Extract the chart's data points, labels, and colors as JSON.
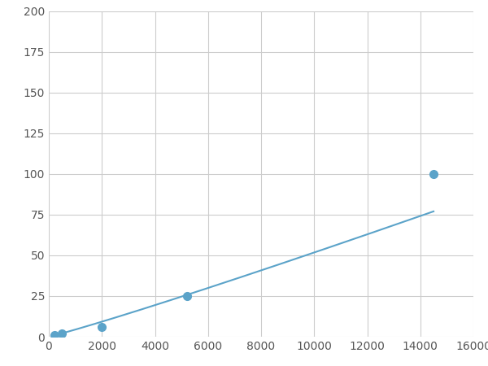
{
  "x_points": [
    200,
    500,
    2000,
    5200,
    14500
  ],
  "y_points": [
    1,
    2,
    6,
    25,
    100
  ],
  "line_color": "#5ba3c9",
  "marker_color": "#5ba3c9",
  "marker_size": 7,
  "line_width": 1.5,
  "xlim": [
    0,
    16000
  ],
  "ylim": [
    0,
    200
  ],
  "xticks": [
    0,
    2000,
    4000,
    6000,
    8000,
    10000,
    12000,
    14000,
    16000
  ],
  "yticks": [
    0,
    25,
    50,
    75,
    100,
    125,
    150,
    175,
    200
  ],
  "grid_color": "#cccccc",
  "background_color": "#ffffff",
  "figsize": [
    6.0,
    4.5
  ],
  "dpi": 100
}
